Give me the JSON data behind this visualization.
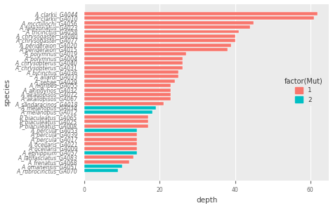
{
  "categories": [
    "A_clarkii_GA044",
    "A_clarkii_GA010",
    "A_mccullochi_GA056",
    "A_latezonatus_GA023",
    "A_tricinctus_GA058",
    "A_chrysogaster_GA080",
    "A_chrysogaster_GA077",
    "A_perideraion_GA020",
    "A_perideraion_GA015",
    "A_polymnus_GA019",
    "A_polymnus_GA004",
    "A_chrysopterus_GA040",
    "A_chrysopterus_GA031",
    "A_bicinctus_GA036",
    "A_allardi_GA033",
    "A_sebae_GA029",
    "A_nigripes_GA055",
    "A_akindynos_GA032",
    "A_akallopisos_GA072",
    "A_akallopisos_GA067",
    "A_sandaracinos_GA018",
    "A_melanopus_GA034",
    "A_melanopus_GA012",
    "P_biaculeatus_GA065",
    "P_biaculeatus_GA025",
    "P_biaculeatus_GA008",
    "A_percula_GA053",
    "A_percula_GA039",
    "A_percula_GA017",
    "A_ocellaris_GA021",
    "A_ocellaris_GA009",
    "A_ephippium_GA057",
    "A_latifasciatus_GA083",
    "A_frenatus_GA068",
    "A_omanensis_GA051",
    "A_rubrocinctus_GA070"
  ],
  "values": [
    62,
    61,
    45,
    44,
    41,
    40,
    40,
    39,
    38,
    27,
    26,
    26,
    26,
    25,
    25,
    24,
    23,
    23,
    23,
    23,
    21,
    19,
    18,
    17,
    17,
    17,
    14,
    14,
    14,
    14,
    14,
    14,
    13,
    12,
    10,
    9
  ],
  "colors": [
    "#F8766D",
    "#F8766D",
    "#F8766D",
    "#F8766D",
    "#F8766D",
    "#F8766D",
    "#F8766D",
    "#F8766D",
    "#F8766D",
    "#F8766D",
    "#F8766D",
    "#F8766D",
    "#F8766D",
    "#F8766D",
    "#F8766D",
    "#F8766D",
    "#F8766D",
    "#F8766D",
    "#F8766D",
    "#F8766D",
    "#F8766D",
    "#00BFC4",
    "#00BFC4",
    "#F8766D",
    "#F8766D",
    "#F8766D",
    "#00BFC4",
    "#F8766D",
    "#F8766D",
    "#F8766D",
    "#F8766D",
    "#00BFC4",
    "#F8766D",
    "#F8766D",
    "#00BFC4",
    "#00BFC4"
  ],
  "xlabel": "depth",
  "ylabel": "species",
  "xlim": [
    0,
    65
  ],
  "legend_title": "factor(Mut)",
  "legend_labels": [
    "1",
    "2"
  ],
  "legend_colors": [
    "#F8766D",
    "#00BFC4"
  ],
  "bg_color": "#EBEBEB",
  "grid_color": "#FFFFFF",
  "label_fontsize": 7.5,
  "tick_fontsize": 5.5
}
